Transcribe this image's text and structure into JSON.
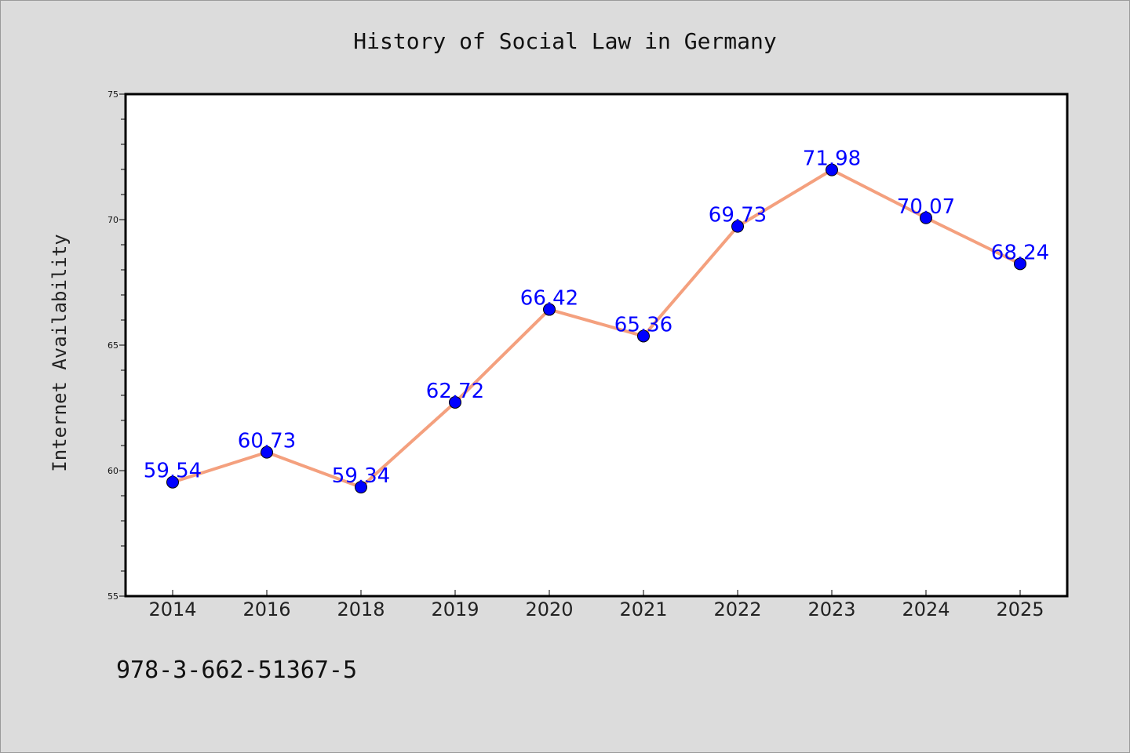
{
  "chart_data": {
    "type": "line",
    "title": "History of Social Law in Germany",
    "xlabel": "",
    "ylabel": "Internet Availability",
    "categories": [
      "2014",
      "2016",
      "2018",
      "2019",
      "2020",
      "2021",
      "2022",
      "2023",
      "2024",
      "2025"
    ],
    "series": [
      {
        "values": [
          59.54,
          60.73,
          59.34,
          62.72,
          66.42,
          65.36,
          69.73,
          71.98,
          70.07,
          68.24
        ]
      }
    ],
    "data_labels": [
      "59.54",
      "60.73",
      "59.34",
      "62.72",
      "66.42",
      "65.36",
      "69.73",
      "71.98",
      "70.07",
      "68.24"
    ],
    "ylim": [
      55,
      75
    ],
    "yticks": [
      "55",
      "60",
      "65",
      "70",
      "75"
    ],
    "grid": false,
    "line_color": "#f4a07e",
    "marker_color": "#0000ff",
    "label_color": "#0000ff"
  },
  "footer": {
    "isbn": "978-3-662-51367-5"
  }
}
